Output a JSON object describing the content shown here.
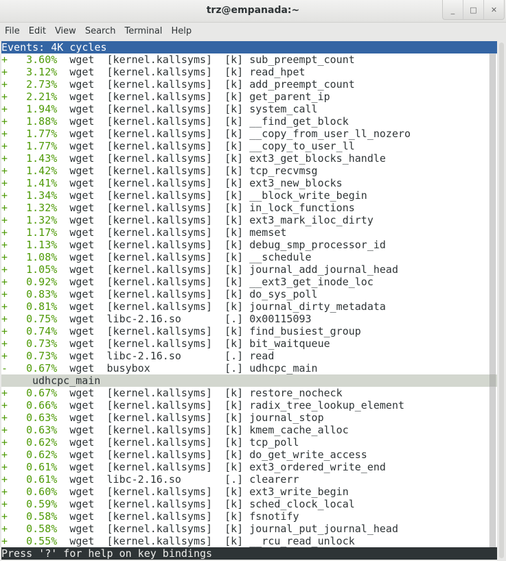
{
  "window": {
    "title": "trz@empanada:~",
    "buttons": [
      "_",
      "□",
      "✕"
    ]
  },
  "menu": [
    "File",
    "Edit",
    "View",
    "Search",
    "Terminal",
    "Help"
  ],
  "header": "Events: 4K cycles",
  "rows": [
    [
      "+",
      "3.60%",
      "wget",
      "[kernel.kallsyms]",
      "[k]",
      "sub_preempt_count"
    ],
    [
      "+",
      "3.12%",
      "wget",
      "[kernel.kallsyms]",
      "[k]",
      "read_hpet"
    ],
    [
      "+",
      "2.73%",
      "wget",
      "[kernel.kallsyms]",
      "[k]",
      "add_preempt_count"
    ],
    [
      "+",
      "2.21%",
      "wget",
      "[kernel.kallsyms]",
      "[k]",
      "get_parent_ip"
    ],
    [
      "+",
      "1.94%",
      "wget",
      "[kernel.kallsyms]",
      "[k]",
      "system_call"
    ],
    [
      "+",
      "1.88%",
      "wget",
      "[kernel.kallsyms]",
      "[k]",
      "__find_get_block"
    ],
    [
      "+",
      "1.77%",
      "wget",
      "[kernel.kallsyms]",
      "[k]",
      "__copy_from_user_ll_nozero"
    ],
    [
      "+",
      "1.77%",
      "wget",
      "[kernel.kallsyms]",
      "[k]",
      "__copy_to_user_ll"
    ],
    [
      "+",
      "1.43%",
      "wget",
      "[kernel.kallsyms]",
      "[k]",
      "ext3_get_blocks_handle"
    ],
    [
      "+",
      "1.42%",
      "wget",
      "[kernel.kallsyms]",
      "[k]",
      "tcp_recvmsg"
    ],
    [
      "+",
      "1.41%",
      "wget",
      "[kernel.kallsyms]",
      "[k]",
      "ext3_new_blocks"
    ],
    [
      "+",
      "1.34%",
      "wget",
      "[kernel.kallsyms]",
      "[k]",
      "__block_write_begin"
    ],
    [
      "+",
      "1.32%",
      "wget",
      "[kernel.kallsyms]",
      "[k]",
      "in_lock_functions"
    ],
    [
      "+",
      "1.32%",
      "wget",
      "[kernel.kallsyms]",
      "[k]",
      "ext3_mark_iloc_dirty"
    ],
    [
      "+",
      "1.17%",
      "wget",
      "[kernel.kallsyms]",
      "[k]",
      "memset"
    ],
    [
      "+",
      "1.13%",
      "wget",
      "[kernel.kallsyms]",
      "[k]",
      "debug_smp_processor_id"
    ],
    [
      "+",
      "1.08%",
      "wget",
      "[kernel.kallsyms]",
      "[k]",
      "__schedule"
    ],
    [
      "+",
      "1.05%",
      "wget",
      "[kernel.kallsyms]",
      "[k]",
      "journal_add_journal_head"
    ],
    [
      "+",
      "0.92%",
      "wget",
      "[kernel.kallsyms]",
      "[k]",
      "__ext3_get_inode_loc"
    ],
    [
      "+",
      "0.83%",
      "wget",
      "[kernel.kallsyms]",
      "[k]",
      "do_sys_poll"
    ],
    [
      "+",
      "0.81%",
      "wget",
      "[kernel.kallsyms]",
      "[k]",
      "journal_dirty_metadata"
    ],
    [
      "+",
      "0.75%",
      "wget",
      "libc-2.16.so",
      "[.]",
      "0x00115093"
    ],
    [
      "+",
      "0.74%",
      "wget",
      "[kernel.kallsyms]",
      "[k]",
      "find_busiest_group"
    ],
    [
      "+",
      "0.73%",
      "wget",
      "[kernel.kallsyms]",
      "[k]",
      "bit_waitqueue"
    ],
    [
      "+",
      "0.73%",
      "wget",
      "libc-2.16.so",
      "[.]",
      "read"
    ],
    [
      "-",
      "0.67%",
      "wget",
      "busybox",
      "[.]",
      "udhcpc_main"
    ]
  ],
  "callchain": "udhcpc_main",
  "rows2": [
    [
      "+",
      "0.67%",
      "wget",
      "[kernel.kallsyms]",
      "[k]",
      "restore_nocheck"
    ],
    [
      "+",
      "0.66%",
      "wget",
      "[kernel.kallsyms]",
      "[k]",
      "radix_tree_lookup_element"
    ],
    [
      "+",
      "0.63%",
      "wget",
      "[kernel.kallsyms]",
      "[k]",
      "journal_stop"
    ],
    [
      "+",
      "0.63%",
      "wget",
      "[kernel.kallsyms]",
      "[k]",
      "kmem_cache_alloc"
    ],
    [
      "+",
      "0.62%",
      "wget",
      "[kernel.kallsyms]",
      "[k]",
      "tcp_poll"
    ],
    [
      "+",
      "0.62%",
      "wget",
      "[kernel.kallsyms]",
      "[k]",
      "do_get_write_access"
    ],
    [
      "+",
      "0.61%",
      "wget",
      "[kernel.kallsyms]",
      "[k]",
      "ext3_ordered_write_end"
    ],
    [
      "+",
      "0.61%",
      "wget",
      "libc-2.16.so",
      "[.]",
      "clearerr"
    ],
    [
      "+",
      "0.60%",
      "wget",
      "[kernel.kallsyms]",
      "[k]",
      "ext3_write_begin"
    ],
    [
      "+",
      "0.59%",
      "wget",
      "[kernel.kallsyms]",
      "[k]",
      "sched_clock_local"
    ],
    [
      "+",
      "0.58%",
      "wget",
      "[kernel.kallsyms]",
      "[k]",
      "fsnotify"
    ],
    [
      "+",
      "0.58%",
      "wget",
      "[kernel.kallsyms]",
      "[k]",
      "journal_put_journal_head"
    ],
    [
      "+",
      "0.55%",
      "wget",
      "[kernel.kallsyms]",
      "[k]",
      "__rcu_read_unlock"
    ]
  ],
  "status": "Press '?' for help on key bindings"
}
